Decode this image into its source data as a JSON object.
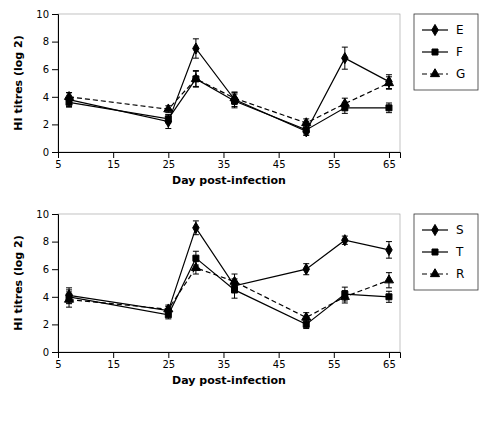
{
  "chart_data": [
    {
      "type": "line",
      "xlabel": "Day post-infection",
      "ylabel": "HI titres (log 2)",
      "x": [
        7,
        25,
        30,
        37,
        50,
        57,
        65
      ],
      "xlim": [
        5,
        67
      ],
      "ylim": [
        0,
        10
      ],
      "xticks": [
        5,
        15,
        25,
        35,
        45,
        55,
        65
      ],
      "yticks": [
        0,
        2,
        4,
        6,
        8,
        10
      ],
      "grid": false,
      "legend": "right",
      "series": [
        {
          "name": "E",
          "color": "#000000",
          "marker": "diamond",
          "line_style": "solid",
          "values": [
            3.8,
            2.2,
            7.5,
            3.8,
            1.5,
            6.8,
            5.1
          ],
          "yerr": [
            0.5,
            0.5,
            0.7,
            0.5,
            0.3,
            0.8,
            0.5
          ]
        },
        {
          "name": "F",
          "color": "#000000",
          "marker": "square",
          "line_style": "solid",
          "values": [
            3.6,
            2.4,
            5.3,
            3.7,
            1.6,
            3.2,
            3.2
          ],
          "yerr": [
            0.35,
            0.3,
            0.6,
            0.5,
            0.3,
            0.4,
            0.35
          ]
        },
        {
          "name": "G",
          "color": "#000000",
          "marker": "triangle",
          "line_style": "dashed",
          "values": [
            4.0,
            3.1,
            5.3,
            3.9,
            2.1,
            3.5,
            5.0
          ],
          "yerr": [
            0.3,
            0.25,
            0.55,
            0.45,
            0.3,
            0.4,
            0.45
          ]
        }
      ]
    },
    {
      "type": "line",
      "xlabel": "Day post-infection",
      "ylabel": "HI titres (log 2)",
      "x": [
        7,
        25,
        30,
        37,
        50,
        57,
        65
      ],
      "xlim": [
        5,
        67
      ],
      "ylim": [
        0,
        10
      ],
      "xticks": [
        5,
        15,
        25,
        35,
        45,
        55,
        65
      ],
      "yticks": [
        0,
        2,
        4,
        6,
        8,
        10
      ],
      "grid": false,
      "legend": "right",
      "series": [
        {
          "name": "S",
          "color": "#000000",
          "marker": "diamond",
          "line_style": "solid",
          "values": [
            4.1,
            3.0,
            9.0,
            4.8,
            6.0,
            8.1,
            7.4
          ],
          "yerr": [
            0.55,
            0.3,
            0.5,
            0.5,
            0.4,
            0.3,
            0.6
          ]
        },
        {
          "name": "T",
          "color": "#000000",
          "marker": "square",
          "line_style": "solid",
          "values": [
            4.0,
            2.7,
            6.8,
            4.5,
            2.0,
            4.2,
            4.0
          ],
          "yerr": [
            0.5,
            0.3,
            0.5,
            0.6,
            0.3,
            0.5,
            0.4
          ]
        },
        {
          "name": "R",
          "color": "#000000",
          "marker": "triangle",
          "line_style": "dashed",
          "values": [
            3.8,
            3.1,
            6.1,
            5.1,
            2.5,
            4.0,
            5.2
          ],
          "yerr": [
            0.55,
            0.3,
            0.45,
            0.55,
            0.35,
            0.45,
            0.55
          ]
        }
      ]
    }
  ]
}
